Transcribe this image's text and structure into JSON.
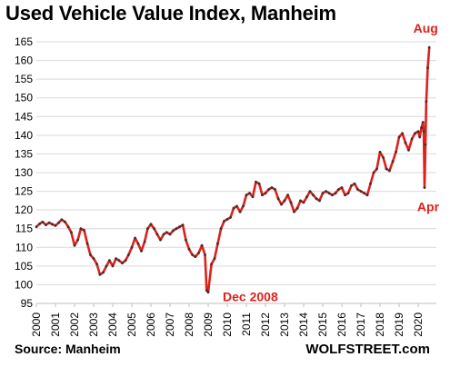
{
  "chart_data": {
    "type": "line",
    "title": "Used Vehicle Value Index, Manheim",
    "xlabel": "",
    "ylabel": "",
    "ylim": [
      95,
      165
    ],
    "xlim": [
      2000,
      2020.58
    ],
    "y_ticks": [
      95,
      100,
      105,
      110,
      115,
      120,
      125,
      130,
      135,
      140,
      145,
      150,
      155,
      160,
      165
    ],
    "x_ticks": [
      "2000",
      "2001",
      "2002",
      "2003",
      "2004",
      "2005",
      "2006",
      "2007",
      "2008",
      "2009",
      "2010",
      "2011",
      "2012",
      "2013",
      "2014",
      "2015",
      "2016",
      "2017",
      "2018",
      "2019",
      "2020"
    ],
    "grid": "horizontal",
    "series": [
      {
        "name": "",
        "color": "#e0201b",
        "marker_color": "#333333",
        "points": [
          [
            2000.0,
            115.5
          ],
          [
            2000.17,
            116.3
          ],
          [
            2000.33,
            116.8
          ],
          [
            2000.5,
            116.0
          ],
          [
            2000.67,
            116.6
          ],
          [
            2000.83,
            116.2
          ],
          [
            2001.0,
            115.8
          ],
          [
            2001.17,
            116.6
          ],
          [
            2001.33,
            117.4
          ],
          [
            2001.5,
            116.8
          ],
          [
            2001.67,
            115.5
          ],
          [
            2001.83,
            114.0
          ],
          [
            2002.0,
            110.5
          ],
          [
            2002.17,
            112.0
          ],
          [
            2002.33,
            115.0
          ],
          [
            2002.5,
            114.6
          ],
          [
            2002.67,
            111.0
          ],
          [
            2002.83,
            108.0
          ],
          [
            2003.0,
            107.0
          ],
          [
            2003.17,
            105.5
          ],
          [
            2003.33,
            102.7
          ],
          [
            2003.5,
            103.3
          ],
          [
            2003.67,
            105.0
          ],
          [
            2003.83,
            106.5
          ],
          [
            2004.0,
            105.0
          ],
          [
            2004.17,
            107.0
          ],
          [
            2004.33,
            106.5
          ],
          [
            2004.5,
            105.8
          ],
          [
            2004.67,
            106.5
          ],
          [
            2004.83,
            108.0
          ],
          [
            2005.0,
            110.0
          ],
          [
            2005.17,
            112.5
          ],
          [
            2005.33,
            111.0
          ],
          [
            2005.5,
            109.0
          ],
          [
            2005.67,
            111.5
          ],
          [
            2005.83,
            115.0
          ],
          [
            2006.0,
            116.2
          ],
          [
            2006.17,
            115.0
          ],
          [
            2006.33,
            113.5
          ],
          [
            2006.5,
            112.0
          ],
          [
            2006.67,
            113.5
          ],
          [
            2006.83,
            114.0
          ],
          [
            2007.0,
            113.5
          ],
          [
            2007.17,
            114.5
          ],
          [
            2007.33,
            115.0
          ],
          [
            2007.5,
            115.5
          ],
          [
            2007.67,
            116.0
          ],
          [
            2007.83,
            112.0
          ],
          [
            2008.0,
            109.5
          ],
          [
            2008.17,
            108.0
          ],
          [
            2008.33,
            107.5
          ],
          [
            2008.5,
            108.5
          ],
          [
            2008.67,
            110.5
          ],
          [
            2008.83,
            108.0
          ],
          [
            2008.92,
            98.5
          ],
          [
            2009.0,
            98.0
          ],
          [
            2009.17,
            105.5
          ],
          [
            2009.33,
            107.0
          ],
          [
            2009.5,
            111.0
          ],
          [
            2009.67,
            115.0
          ],
          [
            2009.83,
            117.0
          ],
          [
            2010.0,
            117.5
          ],
          [
            2010.17,
            118.0
          ],
          [
            2010.33,
            120.5
          ],
          [
            2010.5,
            121.0
          ],
          [
            2010.67,
            119.5
          ],
          [
            2010.83,
            121.0
          ],
          [
            2011.0,
            124.0
          ],
          [
            2011.17,
            124.5
          ],
          [
            2011.33,
            123.5
          ],
          [
            2011.5,
            127.5
          ],
          [
            2011.67,
            127.0
          ],
          [
            2011.83,
            124.0
          ],
          [
            2012.0,
            124.5
          ],
          [
            2012.17,
            125.5
          ],
          [
            2012.33,
            126.0
          ],
          [
            2012.5,
            125.5
          ],
          [
            2012.67,
            123.0
          ],
          [
            2012.83,
            121.5
          ],
          [
            2013.0,
            122.5
          ],
          [
            2013.17,
            124.0
          ],
          [
            2013.33,
            122.0
          ],
          [
            2013.5,
            119.5
          ],
          [
            2013.67,
            120.5
          ],
          [
            2013.83,
            122.5
          ],
          [
            2014.0,
            122.0
          ],
          [
            2014.17,
            123.5
          ],
          [
            2014.33,
            125.0
          ],
          [
            2014.5,
            124.0
          ],
          [
            2014.67,
            123.0
          ],
          [
            2014.83,
            122.5
          ],
          [
            2015.0,
            124.5
          ],
          [
            2015.17,
            125.0
          ],
          [
            2015.33,
            124.5
          ],
          [
            2015.5,
            124.0
          ],
          [
            2015.67,
            124.5
          ],
          [
            2015.83,
            125.5
          ],
          [
            2016.0,
            126.0
          ],
          [
            2016.17,
            124.0
          ],
          [
            2016.33,
            124.5
          ],
          [
            2016.5,
            126.5
          ],
          [
            2016.67,
            127.0
          ],
          [
            2016.83,
            125.5
          ],
          [
            2017.0,
            125.0
          ],
          [
            2017.17,
            124.5
          ],
          [
            2017.33,
            124.0
          ],
          [
            2017.5,
            127.0
          ],
          [
            2017.67,
            130.0
          ],
          [
            2017.83,
            131.0
          ],
          [
            2018.0,
            135.5
          ],
          [
            2018.17,
            134.0
          ],
          [
            2018.33,
            131.0
          ],
          [
            2018.5,
            130.5
          ],
          [
            2018.67,
            133.0
          ],
          [
            2018.83,
            135.5
          ],
          [
            2019.0,
            139.5
          ],
          [
            2019.17,
            140.5
          ],
          [
            2019.33,
            138.0
          ],
          [
            2019.5,
            136.0
          ],
          [
            2019.67,
            139.0
          ],
          [
            2019.83,
            140.5
          ],
          [
            2020.0,
            141.0
          ],
          [
            2020.08,
            139.5
          ],
          [
            2020.17,
            142.0
          ],
          [
            2020.25,
            143.5
          ],
          [
            2020.29,
            141.0
          ],
          [
            2020.33,
            126.0
          ],
          [
            2020.38,
            137.5
          ],
          [
            2020.42,
            149.0
          ],
          [
            2020.5,
            158.0
          ],
          [
            2020.58,
            163.5
          ]
        ]
      }
    ],
    "annotations": [
      {
        "text": "Dec 2008",
        "x": 2009.0,
        "y": 98.0
      },
      {
        "text": "Apr",
        "x": 2020.33,
        "y": 126.0
      },
      {
        "text": "Aug",
        "x": 2020.58,
        "y": 163.5
      }
    ]
  },
  "title": "Used Vehicle Value Index, Manheim",
  "source": "Source: Manheim",
  "brand": "WOLFSTREET.com",
  "colors": {
    "line": "#e0201b",
    "markers": "#333333",
    "grid": "#d9d9d9",
    "annotation": "#e0201b"
  }
}
